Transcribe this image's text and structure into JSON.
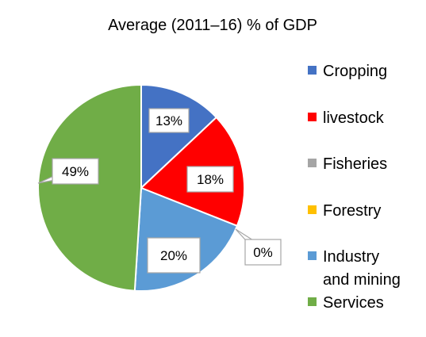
{
  "chart_data": {
    "type": "pie",
    "title": "Average (2011–16) % of GDP",
    "slices": [
      {
        "label": "Cropping",
        "value": 13,
        "display": "13%",
        "color": "#4472C4"
      },
      {
        "label": "livestock",
        "value": 18,
        "display": "18%",
        "color": "#FF0000"
      },
      {
        "label": "Fisheries",
        "value": 0,
        "display": "",
        "color": "#A5A5A5"
      },
      {
        "label": "Forestry",
        "value": 0,
        "display": "0%",
        "color": "#FFC000"
      },
      {
        "label": "Industry and mining",
        "value": 20,
        "display": "20%",
        "color": "#5B9BD5"
      },
      {
        "label": "Services",
        "value": 49,
        "display": "49%",
        "color": "#70AD47"
      }
    ],
    "legend": {
      "position": "right",
      "entries": [
        {
          "lines": [
            "Cropping"
          ],
          "color": "#4472C4"
        },
        {
          "lines": [
            "livestock"
          ],
          "color": "#FF0000"
        },
        {
          "lines": [
            "Fisheries"
          ],
          "color": "#A5A5A5"
        },
        {
          "lines": [
            "Forestry"
          ],
          "color": "#FFC000"
        },
        {
          "lines": [
            "Industry",
            "and mining"
          ],
          "color": "#5B9BD5"
        },
        {
          "lines": [
            "Services"
          ],
          "color": "#70AD47"
        }
      ]
    }
  }
}
